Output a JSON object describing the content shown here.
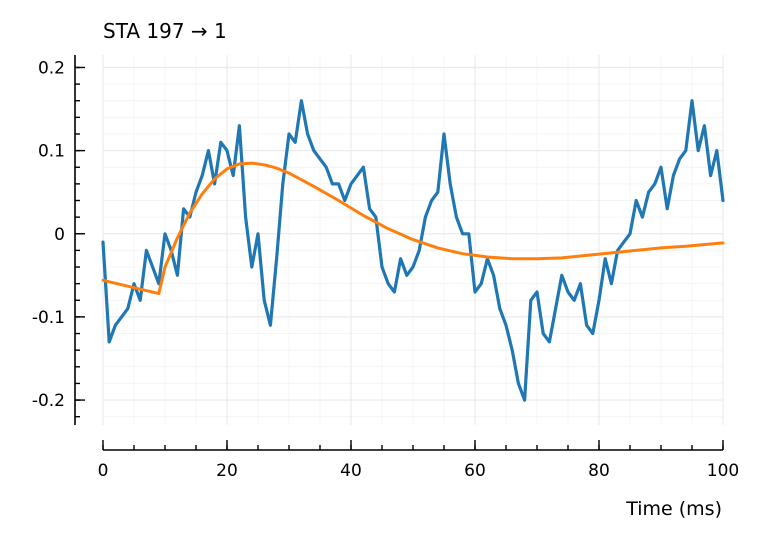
{
  "chart_data": {
    "type": "line",
    "title": "STA 197 → 1",
    "xlabel": "Time (ms)",
    "ylabel": "",
    "xlim": [
      0,
      100
    ],
    "ylim": [
      -0.23,
      0.215
    ],
    "x_ticks": [
      0,
      20,
      40,
      60,
      80,
      100
    ],
    "y_ticks": [
      -0.2,
      -0.1,
      0,
      0.1,
      0.2
    ],
    "x_tick_labels": [
      "0",
      "20",
      "40",
      "60",
      "80",
      "100"
    ],
    "y_tick_labels": [
      "-0.2",
      "-0.1",
      "0",
      "0.1",
      "0.2"
    ],
    "grid": true,
    "series": [
      {
        "name": "",
        "color": "#1f77b4",
        "x": [
          0,
          1,
          2,
          3,
          4,
          5,
          6,
          7,
          8,
          9,
          10,
          11,
          12,
          13,
          14,
          15,
          16,
          17,
          18,
          19,
          20,
          21,
          22,
          23,
          24,
          25,
          26,
          27,
          28,
          29,
          30,
          31,
          32,
          33,
          34,
          35,
          36,
          37,
          38,
          39,
          40,
          41,
          42,
          43,
          44,
          45,
          46,
          47,
          48,
          49,
          50,
          51,
          52,
          53,
          54,
          55,
          56,
          57,
          58,
          59,
          60,
          61,
          62,
          63,
          64,
          65,
          66,
          67,
          68,
          69,
          70,
          71,
          72,
          73,
          74,
          75,
          76,
          77,
          78,
          79,
          80,
          81,
          82,
          83,
          84,
          85,
          86,
          87,
          88,
          89,
          90,
          91,
          92,
          93,
          94,
          95,
          96,
          97,
          98,
          99,
          100
        ],
        "y": [
          -0.01,
          -0.13,
          -0.11,
          -0.1,
          -0.09,
          -0.06,
          -0.08,
          -0.02,
          -0.04,
          -0.06,
          0.0,
          -0.02,
          -0.05,
          0.03,
          0.02,
          0.05,
          0.07,
          0.1,
          0.06,
          0.11,
          0.1,
          0.07,
          0.13,
          0.02,
          -0.04,
          0.0,
          -0.08,
          -0.11,
          -0.03,
          0.06,
          0.12,
          0.11,
          0.16,
          0.12,
          0.1,
          0.09,
          0.08,
          0.06,
          0.06,
          0.04,
          0.06,
          0.07,
          0.08,
          0.03,
          0.02,
          -0.04,
          -0.06,
          -0.07,
          -0.03,
          -0.05,
          -0.04,
          -0.02,
          0.02,
          0.04,
          0.05,
          0.12,
          0.06,
          0.02,
          0.0,
          0.0,
          -0.07,
          -0.06,
          -0.03,
          -0.05,
          -0.09,
          -0.11,
          -0.14,
          -0.18,
          -0.2,
          -0.08,
          -0.07,
          -0.12,
          -0.13,
          -0.09,
          -0.05,
          -0.07,
          -0.08,
          -0.06,
          -0.11,
          -0.12,
          -0.08,
          -0.03,
          -0.06,
          -0.02,
          -0.01,
          0.0,
          0.04,
          0.02,
          0.05,
          0.06,
          0.08,
          0.03,
          0.07,
          0.09,
          0.1,
          0.16,
          0.1,
          0.13,
          0.07,
          0.1,
          0.04
        ]
      },
      {
        "name": "",
        "color": "#ff7f0e",
        "x": [
          0,
          9,
          10,
          12,
          14,
          16,
          18,
          20,
          22,
          24,
          26,
          28,
          30,
          34,
          38,
          42,
          46,
          50,
          54,
          58,
          62,
          66,
          70,
          74,
          78,
          82,
          86,
          90,
          94,
          100
        ],
        "y": [
          -0.056,
          -0.072,
          -0.04,
          -0.005,
          0.025,
          0.048,
          0.066,
          0.078,
          0.084,
          0.085,
          0.083,
          0.079,
          0.073,
          0.057,
          0.04,
          0.022,
          0.006,
          -0.007,
          -0.017,
          -0.024,
          -0.028,
          -0.03,
          -0.03,
          -0.029,
          -0.026,
          -0.023,
          -0.02,
          -0.017,
          -0.015,
          -0.011
        ]
      }
    ]
  }
}
